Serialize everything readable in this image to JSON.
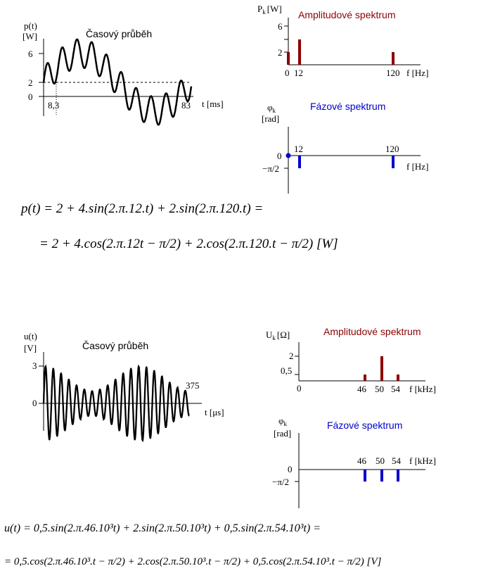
{
  "chart_data": [
    {
      "type": "line",
      "title": "Časový průběh",
      "ylabel": "p(t)",
      "yunit": "[W]",
      "xlabel": "t [ms]",
      "yticks": [
        "6",
        "2",
        "0"
      ],
      "xticks": [
        "8,3",
        "83"
      ],
      "xlim": [
        0,
        83
      ],
      "ylim": [
        -2,
        6
      ],
      "dashed_level": 2
    },
    {
      "type": "bar",
      "title": "Amplitudové spektrum",
      "ylabel": "P",
      "ysub": "k",
      "yunit": "[W]",
      "xlabel": "f [Hz]",
      "yticks": [
        "6",
        "2"
      ],
      "x": [
        0,
        12,
        120
      ],
      "xticks": [
        "0",
        "12",
        "120"
      ],
      "values": [
        2,
        4,
        2
      ],
      "ylim": [
        0,
        6
      ],
      "color": "#8b0000"
    },
    {
      "type": "bar",
      "title": "Fázové spektrum",
      "ylabel": "φ",
      "ysub": "k",
      "yunit": "[rad]",
      "xlabel": "f [Hz]",
      "yticks": [
        "0",
        "−π/2"
      ],
      "x": [
        0,
        12,
        120
      ],
      "xticks": [
        "12",
        "120"
      ],
      "values": [
        0,
        -1.5708,
        -1.5708
      ],
      "color": "#0000cc"
    },
    {
      "type": "line",
      "title": "Časový průběh",
      "ylabel": "u(t)",
      "yunit": "[V]",
      "xlabel": "t [μs]",
      "yticks": [
        "3",
        "0"
      ],
      "xticks": [
        "375"
      ],
      "xlim": [
        0,
        375
      ],
      "ylim": [
        -3,
        3
      ]
    },
    {
      "type": "bar",
      "title": "Amplitudové spektrum",
      "ylabel": "U",
      "ysub": "k",
      "yunit": "[Ω]",
      "xlabel": "f [kHz]",
      "yticks": [
        "2",
        "0,5"
      ],
      "x": [
        46,
        50,
        54
      ],
      "xticks": [
        "0",
        "46",
        "50",
        "54"
      ],
      "values": [
        0.5,
        2,
        0.5
      ],
      "color": "#8b0000"
    },
    {
      "type": "bar",
      "title": "Fázové spektrum",
      "ylabel": "φ",
      "ysub": "k",
      "yunit": "[rad]",
      "xlabel": "f [kHz]",
      "yticks": [
        "0",
        "−π/2"
      ],
      "x": [
        46,
        50,
        54
      ],
      "xticks": [
        "46",
        "50",
        "54"
      ],
      "values": [
        -1.5708,
        -1.5708,
        -1.5708
      ],
      "color": "#0000cc"
    }
  ],
  "formulas": {
    "p_line1": "p(t) = 2 + 4.sin(2.π.12.t) + 2.sin(2.π.120.t) =",
    "p_line2": "= 2 + 4.cos(2.π.12t − π/2) + 2.cos(2.π.120.t − π/2) [W]",
    "u_line1": "u(t) = 0,5.sin(2.π.46.10³t) + 2.sin(2.π.50.10³t) + 0,5.sin(2.π.54.10³t) =",
    "u_line2": "= 0,5.cos(2.π.46.10³.t − π/2) + 2.cos(2.π.50.10³.t − π/2) + 0,5.cos(2.π.54.10³.t − π/2) [V]"
  }
}
